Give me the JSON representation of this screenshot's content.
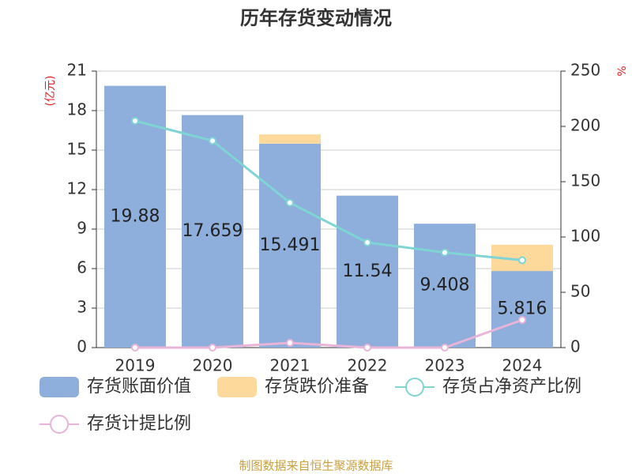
{
  "chart_data": {
    "type": "bar",
    "title": "历年存货变动情况",
    "y_unit": "(亿元)",
    "y2_unit": "%",
    "source": "制图数据来自恒生聚源数据库",
    "categories": [
      "2019",
      "2020",
      "2021",
      "2022",
      "2023",
      "2024"
    ],
    "stacked": true,
    "grid": true,
    "ylim": [
      0,
      21
    ],
    "yticks": [
      0,
      3,
      6,
      9,
      12,
      15,
      18,
      21
    ],
    "y2lim": [
      0,
      250
    ],
    "y2ticks": [
      0,
      50,
      100,
      150,
      200,
      250
    ],
    "series": [
      {
        "name": "存货账面价值",
        "type": "bar",
        "color": "#8eaedc",
        "values": [
          19.88,
          17.659,
          15.491,
          11.54,
          9.408,
          5.816
        ],
        "show_labels": true
      },
      {
        "name": "存货跌价准备",
        "type": "bar",
        "color": "#fdd99b",
        "values": [
          0,
          0,
          0.7,
          0,
          0,
          2.0
        ]
      },
      {
        "name": "存货占净资产比例",
        "type": "line",
        "axis": "y2",
        "color": "#7fd4d4",
        "values": [
          205,
          187,
          131,
          95,
          86,
          79
        ]
      },
      {
        "name": "存货计提比例",
        "type": "line",
        "axis": "y2",
        "color": "#e8b4d8",
        "values": [
          0,
          0,
          4.3,
          0,
          0,
          25
        ]
      }
    ]
  }
}
